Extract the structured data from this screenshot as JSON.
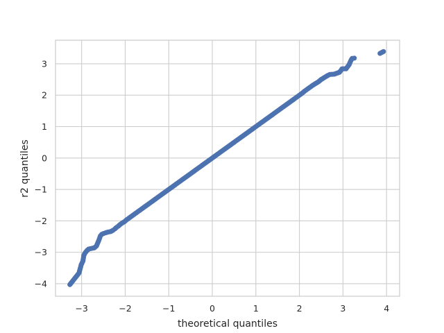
{
  "chart_data": {
    "type": "scatter",
    "title": "",
    "xlabel": "theoretical quantiles",
    "ylabel": "r2 quantiles",
    "xlim": [
      -3.6,
      4.3
    ],
    "ylim": [
      -4.4,
      3.75
    ],
    "x_ticks": [
      -3,
      -2,
      -1,
      0,
      1,
      2,
      3,
      4
    ],
    "y_ticks": [
      -4,
      -3,
      -2,
      -1,
      0,
      1,
      2,
      3
    ],
    "grid": true,
    "point_color": "#4c72b0",
    "series": [
      {
        "points": [
          [
            -3.27,
            -4.03
          ],
          [
            -3.06,
            -3.66
          ],
          [
            -3.01,
            -3.4
          ],
          [
            -2.97,
            -3.28
          ],
          [
            -2.95,
            -3.1
          ],
          [
            -2.92,
            -3.02
          ],
          [
            -2.88,
            -2.95
          ],
          [
            -2.84,
            -2.9
          ],
          [
            -2.78,
            -2.88
          ],
          [
            -2.71,
            -2.86
          ],
          [
            -2.66,
            -2.8
          ],
          [
            -2.63,
            -2.7
          ],
          [
            -2.6,
            -2.6
          ],
          [
            -2.57,
            -2.48
          ],
          [
            -2.54,
            -2.43
          ],
          [
            -2.49,
            -2.4
          ],
          [
            -2.45,
            -2.38
          ],
          [
            -2.4,
            -2.36
          ],
          [
            -2.33,
            -2.34
          ],
          [
            -2.28,
            -2.3
          ],
          [
            -2.24,
            -2.26
          ],
          [
            -2.2,
            -2.21
          ],
          [
            -2.16,
            -2.17
          ],
          [
            -2.12,
            -2.12
          ],
          [
            -2.07,
            -2.07
          ],
          [
            -2.02,
            -2.03
          ],
          [
            -1.97,
            -1.97
          ],
          [
            -1.9,
            -1.9
          ],
          [
            -1.83,
            -1.83
          ],
          [
            -1.75,
            -1.75
          ],
          [
            -1.65,
            -1.65
          ],
          [
            -1.55,
            -1.55
          ],
          [
            -1.45,
            -1.45
          ],
          [
            -1.35,
            -1.35
          ],
          [
            -1.25,
            -1.25
          ],
          [
            -1.15,
            -1.15
          ],
          [
            -1.05,
            -1.05
          ],
          [
            -0.95,
            -0.95
          ],
          [
            -0.85,
            -0.85
          ],
          [
            -0.75,
            -0.75
          ],
          [
            -0.65,
            -0.65
          ],
          [
            -0.55,
            -0.55
          ],
          [
            -0.45,
            -0.45
          ],
          [
            -0.35,
            -0.35
          ],
          [
            -0.25,
            -0.25
          ],
          [
            -0.15,
            -0.15
          ],
          [
            -0.05,
            -0.05
          ],
          [
            0.05,
            0.05
          ],
          [
            0.15,
            0.15
          ],
          [
            0.25,
            0.25
          ],
          [
            0.35,
            0.35
          ],
          [
            0.45,
            0.45
          ],
          [
            0.55,
            0.55
          ],
          [
            0.65,
            0.65
          ],
          [
            0.75,
            0.75
          ],
          [
            0.85,
            0.85
          ],
          [
            0.95,
            0.95
          ],
          [
            1.05,
            1.05
          ],
          [
            1.15,
            1.15
          ],
          [
            1.25,
            1.25
          ],
          [
            1.35,
            1.35
          ],
          [
            1.45,
            1.45
          ],
          [
            1.55,
            1.55
          ],
          [
            1.65,
            1.65
          ],
          [
            1.75,
            1.75
          ],
          [
            1.85,
            1.85
          ],
          [
            1.95,
            1.95
          ],
          [
            2.05,
            2.05
          ],
          [
            2.12,
            2.13
          ],
          [
            2.18,
            2.19
          ],
          [
            2.24,
            2.25
          ],
          [
            2.3,
            2.31
          ],
          [
            2.37,
            2.37
          ],
          [
            2.44,
            2.43
          ],
          [
            2.5,
            2.5
          ],
          [
            2.57,
            2.56
          ],
          [
            2.64,
            2.62
          ],
          [
            2.7,
            2.66
          ],
          [
            2.8,
            2.67
          ],
          [
            2.92,
            2.73
          ],
          [
            2.98,
            2.84
          ],
          [
            3.07,
            2.84
          ],
          [
            3.14,
            2.97
          ],
          [
            3.18,
            3.1
          ],
          [
            3.21,
            3.17
          ],
          [
            3.26,
            3.18
          ],
          [
            3.85,
            3.33
          ],
          [
            3.93,
            3.39
          ]
        ]
      }
    ]
  }
}
